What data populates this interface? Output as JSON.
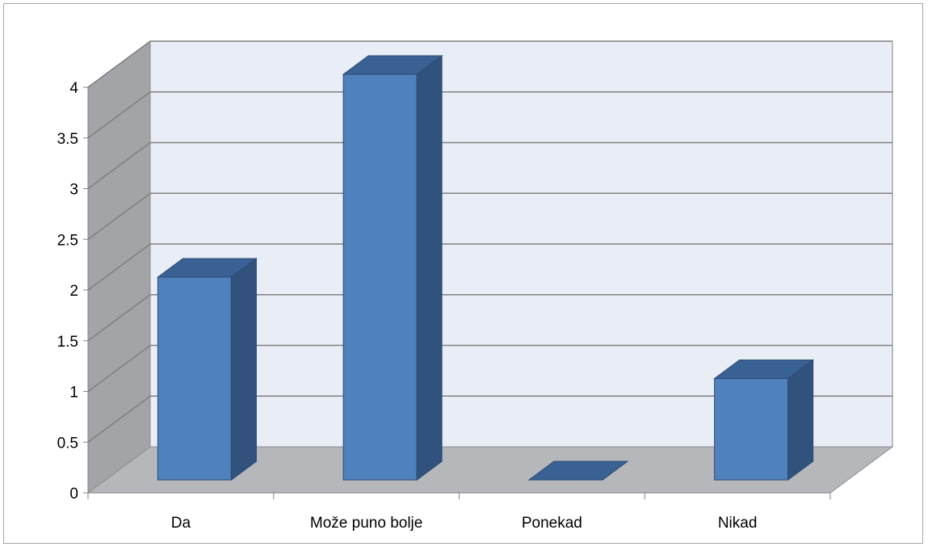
{
  "chart_data": {
    "type": "bar",
    "style": "3d-column",
    "categories": [
      "Da",
      "Može puno bolje",
      "Ponekad",
      "Nikad"
    ],
    "values": [
      2,
      4,
      0,
      1
    ],
    "ylim": [
      0,
      4
    ],
    "yticks": [
      "0",
      "0.5",
      "1",
      "1.5",
      "2",
      "2.5",
      "3",
      "3.5",
      "4"
    ],
    "grid": true,
    "legend": "none",
    "colors": {
      "bar_front": "#4f81bd",
      "bar_side": "#30527d",
      "bar_top": "#3a6193",
      "bar_edge": "#2c4a72",
      "back_wall": "#e9edf6",
      "side_wall": "#a2a4a8",
      "floor": "#b5b7bb",
      "grid": "#808080"
    }
  }
}
